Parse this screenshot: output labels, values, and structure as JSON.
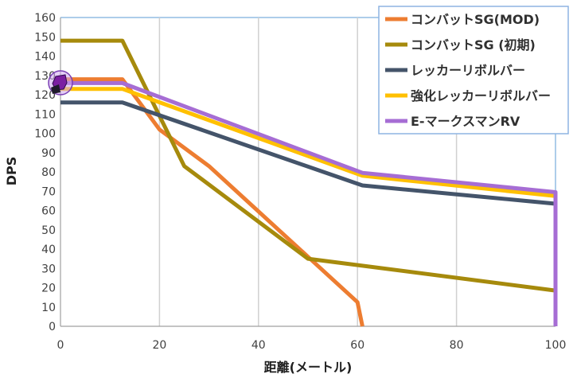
{
  "chart_data": {
    "type": "line",
    "xlabel": "距離(メートル)",
    "ylabel": "DPS",
    "xlim": [
      0,
      100
    ],
    "ylim": [
      0,
      160
    ],
    "xticks": [
      0,
      20,
      40,
      60,
      80,
      100
    ],
    "yticks": [
      0,
      10,
      20,
      30,
      40,
      50,
      60,
      70,
      80,
      90,
      100,
      110,
      120,
      130,
      140,
      150,
      160
    ],
    "grid": "vertical",
    "legend_position": "top-right",
    "series": [
      {
        "name": "コンバットSG(MOD)",
        "color": "#ED7D31",
        "points": [
          [
            0,
            128
          ],
          [
            12.5,
            128
          ],
          [
            20,
            102
          ],
          [
            30,
            83
          ],
          [
            50,
            36
          ],
          [
            60,
            12.5
          ],
          [
            61,
            0
          ]
        ]
      },
      {
        "name": "コンバットSG (初期)",
        "color": "#A68A0C",
        "points": [
          [
            0,
            148
          ],
          [
            12.5,
            148
          ],
          [
            25,
            83
          ],
          [
            50,
            35
          ],
          [
            100,
            18.5
          ]
        ]
      },
      {
        "name": "レッカーリボルバー",
        "color": "#44546A",
        "points": [
          [
            0,
            116
          ],
          [
            12.5,
            116
          ],
          [
            61,
            73
          ],
          [
            100,
            63.5
          ],
          [
            100,
            63.5
          ]
        ]
      },
      {
        "name": "強化レッカーリボルバー",
        "color": "#FFC000",
        "points": [
          [
            0,
            123
          ],
          [
            12.5,
            123
          ],
          [
            61,
            78
          ],
          [
            100,
            67.5
          ]
        ]
      },
      {
        "name": "E-マークスマンRV",
        "color": "#A66DD4",
        "points": [
          [
            0,
            126
          ],
          [
            12.5,
            126
          ],
          [
            61,
            79.5
          ],
          [
            100,
            69.5
          ],
          [
            100,
            0
          ]
        ]
      }
    ]
  },
  "colors": {
    "grid": "#D0D0D0",
    "frame": "#5B9BD5",
    "legend_border": "#8DB4E2"
  },
  "icons": {
    "marker": "purple-star-icon"
  }
}
